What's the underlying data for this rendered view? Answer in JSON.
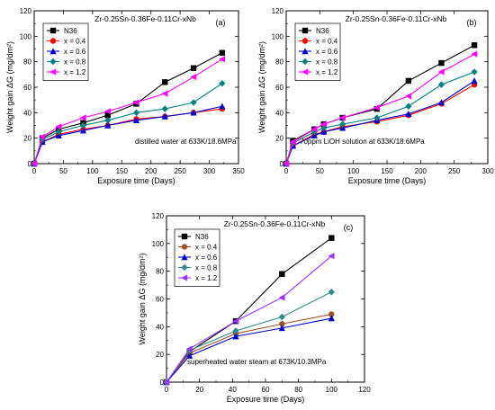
{
  "chart_data": [
    {
      "type": "line",
      "panel_label": "(a)",
      "title": "Zr-0.25Sn-0.36Fe-0.11Cr-xNb",
      "xlabel": "Exposure time (Days)",
      "ylabel": "Weight gain ΔG (mg/dm²)",
      "annotation": "distilled water at 633K/18.6MPa",
      "xlim": [
        0,
        350
      ],
      "ylim": [
        0,
        120
      ],
      "xticks": [
        0,
        50,
        100,
        150,
        200,
        250,
        300,
        350
      ],
      "yticks": [
        0,
        20,
        40,
        60,
        80,
        100,
        120
      ],
      "legend_position": "top-left",
      "grid": false,
      "x": [
        0,
        14,
        42,
        84,
        126,
        175,
        224,
        273,
        322
      ],
      "series": [
        {
          "name": "N36",
          "color": "#000000",
          "marker": "square",
          "values": [
            0,
            20,
            27,
            32,
            38,
            47,
            64,
            75,
            87
          ]
        },
        {
          "name": "x = 0.4",
          "color": "#ff0000",
          "marker": "circle",
          "values": [
            0,
            17,
            23,
            27,
            30,
            35,
            37,
            40,
            43
          ]
        },
        {
          "name": "x = 0.6",
          "color": "#0000cc",
          "marker": "triangle-up",
          "values": [
            0,
            17,
            22,
            26,
            30,
            34,
            37,
            40,
            45
          ]
        },
        {
          "name": "x = 0.8",
          "color": "#008080",
          "marker": "diamond",
          "values": [
            0,
            19,
            25,
            30,
            34,
            40,
            43,
            48,
            63
          ]
        },
        {
          "name": "x = 1.2",
          "color": "#ff00ff",
          "marker": "triangle-left",
          "values": [
            0,
            21,
            29,
            36,
            41,
            48,
            55,
            68,
            82
          ]
        }
      ]
    },
    {
      "type": "line",
      "panel_label": "(b)",
      "title": "Zr-0.25Sn-0.36Fe-0.11Cr-xNb",
      "xlabel": "Exposure time (Days)",
      "ylabel": "Weight gain ΔG (mg/dm²)",
      "annotation": "70ppm LiOH solution at 633K/18.6MPa",
      "xlim": [
        0,
        300
      ],
      "ylim": [
        0,
        120
      ],
      "xticks": [
        0,
        50,
        100,
        150,
        200,
        250,
        300
      ],
      "yticks": [
        0,
        20,
        40,
        60,
        80,
        100,
        120
      ],
      "legend_position": "top-left",
      "grid": false,
      "x": [
        0,
        10,
        42,
        56,
        84,
        135,
        182,
        231,
        280
      ],
      "series": [
        {
          "name": "N36",
          "color": "#000000",
          "marker": "square",
          "values": [
            0,
            18,
            27,
            31,
            36,
            43,
            65,
            79,
            93
          ]
        },
        {
          "name": "x = 0.4",
          "color": "#ff0000",
          "marker": "circle",
          "values": [
            0,
            14,
            23,
            25,
            29,
            33,
            38,
            47,
            62
          ]
        },
        {
          "name": "x = 0.6",
          "color": "#0000cc",
          "marker": "triangle-up",
          "values": [
            0,
            14,
            22,
            25,
            28,
            34,
            39,
            48,
            65
          ]
        },
        {
          "name": "x = 0.8",
          "color": "#008080",
          "marker": "diamond",
          "values": [
            0,
            16,
            25,
            28,
            31,
            36,
            45,
            62,
            72
          ]
        },
        {
          "name": "x = 1.2",
          "color": "#ff00ff",
          "marker": "triangle-left",
          "values": [
            0,
            17,
            27,
            31,
            36,
            44,
            53,
            72,
            86
          ]
        }
      ]
    },
    {
      "type": "line",
      "panel_label": "(c)",
      "title": "Zr-0.25Sn-0.36Fe-0.11Cr-xNb",
      "xlabel": "Exposure time (Days)",
      "ylabel": "Weight gain ΔG (mg/dm²)",
      "annotation": "superheated water steam at 673K/10.3MPa",
      "xlim": [
        0,
        120
      ],
      "ylim": [
        0,
        120
      ],
      "xticks": [
        0,
        20,
        40,
        60,
        80,
        100,
        120
      ],
      "yticks": [
        0,
        20,
        40,
        60,
        80,
        100,
        120
      ],
      "legend_position": "top-left",
      "grid": false,
      "x": [
        0,
        14,
        42,
        70,
        100
      ],
      "series": [
        {
          "name": "N36",
          "color": "#000000",
          "marker": "square",
          "values": [
            0,
            22,
            44,
            78,
            104
          ]
        },
        {
          "name": "x = 0.4",
          "color": "#a0522d",
          "marker": "circle",
          "values": [
            0,
            21,
            35,
            42,
            49
          ]
        },
        {
          "name": "x = 0.6",
          "color": "#0000cc",
          "marker": "triangle-up",
          "values": [
            0,
            19,
            33,
            39,
            46
          ]
        },
        {
          "name": "x = 0.8",
          "color": "#2e8b8b",
          "marker": "diamond",
          "values": [
            0,
            23,
            37,
            47,
            65
          ]
        },
        {
          "name": "x = 1.2",
          "color": "#9933ff",
          "marker": "triangle-left",
          "values": [
            0,
            24,
            44,
            61,
            91
          ]
        }
      ]
    }
  ]
}
